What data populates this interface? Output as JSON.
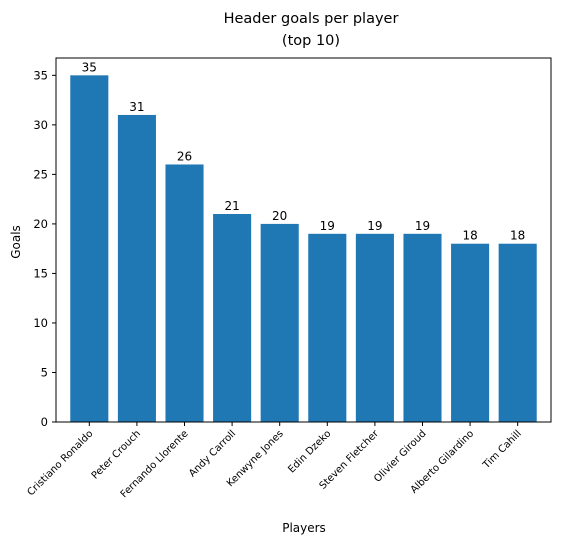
{
  "chart_data": {
    "type": "bar",
    "title_line1": "Header goals per player",
    "title_line2": "(top 10)",
    "xlabel": "Players",
    "ylabel": "Goals",
    "categories": [
      "Cristiano Ronaldo",
      "Peter Crouch",
      "Fernando Llorente",
      "Andy Carroll",
      "Kenwyne Jones",
      "Edin Dzeko",
      "Steven Fletcher",
      "Olivier Giroud",
      "Alberto Gilardino",
      "Tim Cahill"
    ],
    "values": [
      35,
      31,
      26,
      21,
      20,
      19,
      19,
      19,
      18,
      18
    ],
    "ylim": [
      0,
      36.75
    ],
    "yticks": [
      0,
      5,
      10,
      15,
      20,
      25,
      30,
      35
    ],
    "bar_color": "#1f77b4",
    "grid": false,
    "data_labels": true
  }
}
